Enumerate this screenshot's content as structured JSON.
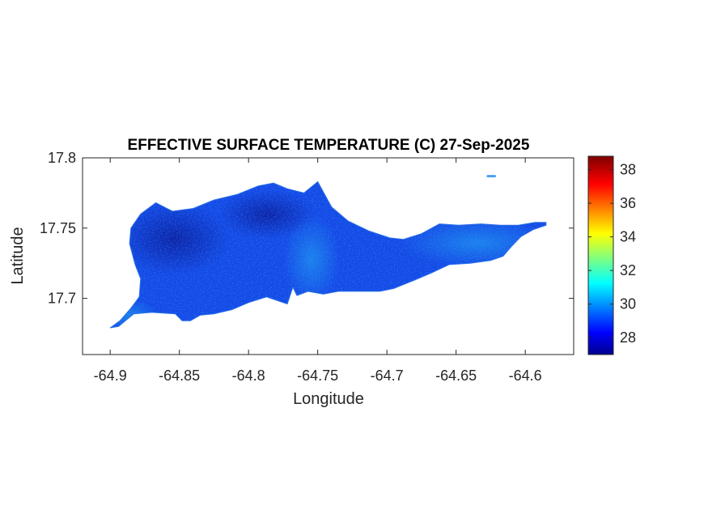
{
  "chart_data": {
    "type": "heatmap",
    "title": "EFFECTIVE SURFACE TEMPERATURE (C) 27-Sep-2025",
    "xlabel": "Longitude",
    "ylabel": "Latitude",
    "xlim": [
      -64.92,
      -64.565
    ],
    "ylim": [
      17.66,
      17.8
    ],
    "x_ticks": [
      -64.9,
      -64.85,
      -64.8,
      -64.75,
      -64.7,
      -64.65,
      -64.6
    ],
    "x_tick_labels": [
      "-64.9",
      "-64.85",
      "-64.8",
      "-64.75",
      "-64.7",
      "-64.65",
      "-64.6"
    ],
    "y_ticks": [
      17.7,
      17.75,
      17.8
    ],
    "y_tick_labels": [
      "17.7",
      "17.75",
      "17.8"
    ],
    "colorbar": {
      "colormap": "jet",
      "range": [
        27,
        38.8
      ],
      "ticks": [
        28,
        30,
        32,
        34,
        36,
        38
      ],
      "tick_labels": [
        "28",
        "30",
        "32",
        "34",
        "36",
        "38"
      ]
    },
    "island_outline_lonlat": [
      [
        -64.9,
        17.679
      ],
      [
        -64.893,
        17.684
      ],
      [
        -64.885,
        17.693
      ],
      [
        -64.879,
        17.701
      ],
      [
        -64.878,
        17.714
      ],
      [
        -64.882,
        17.724
      ],
      [
        -64.886,
        17.739
      ],
      [
        -64.885,
        17.75
      ],
      [
        -64.878,
        17.76
      ],
      [
        -64.867,
        17.768
      ],
      [
        -64.855,
        17.762
      ],
      [
        -64.84,
        17.764
      ],
      [
        -64.825,
        17.77
      ],
      [
        -64.808,
        17.774
      ],
      [
        -64.793,
        17.78
      ],
      [
        -64.782,
        17.782
      ],
      [
        -64.772,
        17.778
      ],
      [
        -64.76,
        17.775
      ],
      [
        -64.75,
        17.783
      ],
      [
        -64.74,
        17.765
      ],
      [
        -64.728,
        17.755
      ],
      [
        -64.713,
        17.748
      ],
      [
        -64.698,
        17.743
      ],
      [
        -64.688,
        17.742
      ],
      [
        -64.675,
        17.746
      ],
      [
        -64.662,
        17.753
      ],
      [
        -64.648,
        17.752
      ],
      [
        -64.632,
        17.753
      ],
      [
        -64.618,
        17.752
      ],
      [
        -64.605,
        17.752
      ],
      [
        -64.593,
        17.754
      ],
      [
        -64.585,
        17.754
      ],
      [
        -64.585,
        17.752
      ],
      [
        -64.594,
        17.749
      ],
      [
        -64.603,
        17.744
      ],
      [
        -64.61,
        17.737
      ],
      [
        -64.616,
        17.73
      ],
      [
        -64.625,
        17.727
      ],
      [
        -64.64,
        17.725
      ],
      [
        -64.655,
        17.724
      ],
      [
        -64.668,
        17.718
      ],
      [
        -64.68,
        17.713
      ],
      [
        -64.695,
        17.707
      ],
      [
        -64.705,
        17.705
      ],
      [
        -64.72,
        17.705
      ],
      [
        -64.735,
        17.705
      ],
      [
        -64.746,
        17.703
      ],
      [
        -64.757,
        17.705
      ],
      [
        -64.765,
        17.702
      ],
      [
        -64.768,
        17.708
      ],
      [
        -64.772,
        17.696
      ],
      [
        -64.778,
        17.698
      ],
      [
        -64.787,
        17.701
      ],
      [
        -64.8,
        17.697
      ],
      [
        -64.812,
        17.692
      ],
      [
        -64.825,
        17.689
      ],
      [
        -64.835,
        17.688
      ],
      [
        -64.842,
        17.684
      ],
      [
        -64.848,
        17.684
      ],
      [
        -64.853,
        17.689
      ],
      [
        -64.87,
        17.69
      ],
      [
        -64.883,
        17.689
      ],
      [
        -64.894,
        17.68
      ]
    ],
    "islet_lonlat": [
      [
        -64.627,
        17.787
      ],
      [
        -64.622,
        17.787
      ]
    ],
    "temperature_field_C": {
      "west_uplands_min": 27.3,
      "central_north": 28.2,
      "central_valley": 29.4,
      "east_end": 29.6,
      "southwest_coast": 29.8,
      "max_on_land": 30.8
    }
  }
}
